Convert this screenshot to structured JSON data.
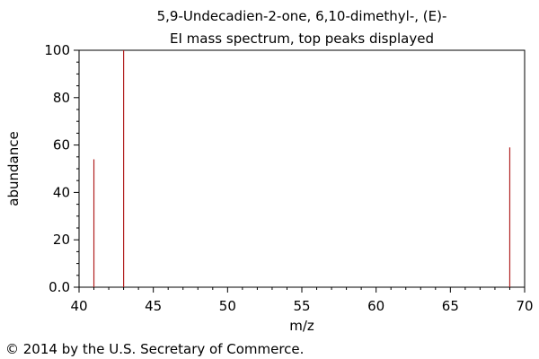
{
  "chart_data": {
    "type": "bar",
    "title": "5,9-Undecadien-2-one, 6,10-dimethyl-, (E)-",
    "subtitle": "EI mass spectrum, top peaks displayed",
    "xlabel": "m/z",
    "ylabel": "abundance",
    "xlim": [
      40,
      70
    ],
    "ylim": [
      0,
      100
    ],
    "x_ticks": [
      40,
      45,
      50,
      55,
      60,
      65,
      70
    ],
    "y_ticks": [
      "0.0",
      "20",
      "40",
      "60",
      "80",
      "100"
    ],
    "grid": false,
    "peaks": [
      {
        "x": 41,
        "y": 54
      },
      {
        "x": 43,
        "y": 100
      },
      {
        "x": 69,
        "y": 59
      }
    ],
    "peak_color": "#b22222"
  },
  "footer": {
    "copyright": "© 2014 by the U.S. Secretary of Commerce."
  }
}
